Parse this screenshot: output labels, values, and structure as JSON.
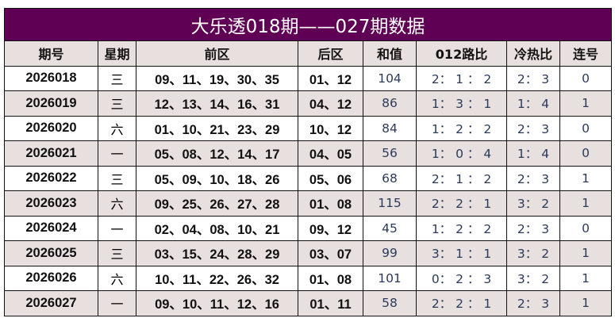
{
  "title": "大乐透018期——027期数据",
  "colors": {
    "title_bg": "#5f0054",
    "alt_row": "#e8e0de"
  },
  "headers": [
    "期号",
    "星期",
    "前区",
    "后区",
    "和值",
    "012路比",
    "冷热比",
    "连号"
  ],
  "rows": [
    [
      "2026018",
      "三",
      "09、11、19、30、35",
      "01、12",
      "104",
      "2： 1 ： 2",
      "2： 3",
      "0"
    ],
    [
      "2026019",
      "三",
      "12、13、14、16、31",
      "04、12",
      "86",
      "1： 3 ： 1",
      "1： 4",
      "1"
    ],
    [
      "2026020",
      "六",
      "01、10、21、23、29",
      "10、12",
      "84",
      "1： 2 ： 2",
      "2： 3",
      "0"
    ],
    [
      "2026021",
      "一",
      "05、08、12、14、17",
      "04、05",
      "56",
      "1： 0 ： 4",
      "1： 4",
      "0"
    ],
    [
      "2026022",
      "三",
      "05、09、10、18、26",
      "05、06",
      "68",
      "2： 1 ： 2",
      "2： 3",
      "1"
    ],
    [
      "2026023",
      "六",
      "09、25、26、27、28",
      "01、08",
      "115",
      "2： 2 ： 1",
      "3： 2",
      "1"
    ],
    [
      "2026024",
      "一",
      "02、04、08、10、21",
      "09、12",
      "45",
      "1： 2 ： 2",
      "2： 3",
      "0"
    ],
    [
      "2026025",
      "三",
      "03、15、24、28、29",
      "03、07",
      "99",
      "3： 1 ： 1",
      "3： 2",
      "1"
    ],
    [
      "2026026",
      "六",
      "10、11、22、26、32",
      "01、08",
      "101",
      "0： 2 ： 3",
      "3： 2",
      "1"
    ],
    [
      "2026027",
      "一",
      "09、10、11、12、16",
      "01、11",
      "58",
      "2： 2 ： 1",
      "2： 3",
      "1"
    ]
  ]
}
